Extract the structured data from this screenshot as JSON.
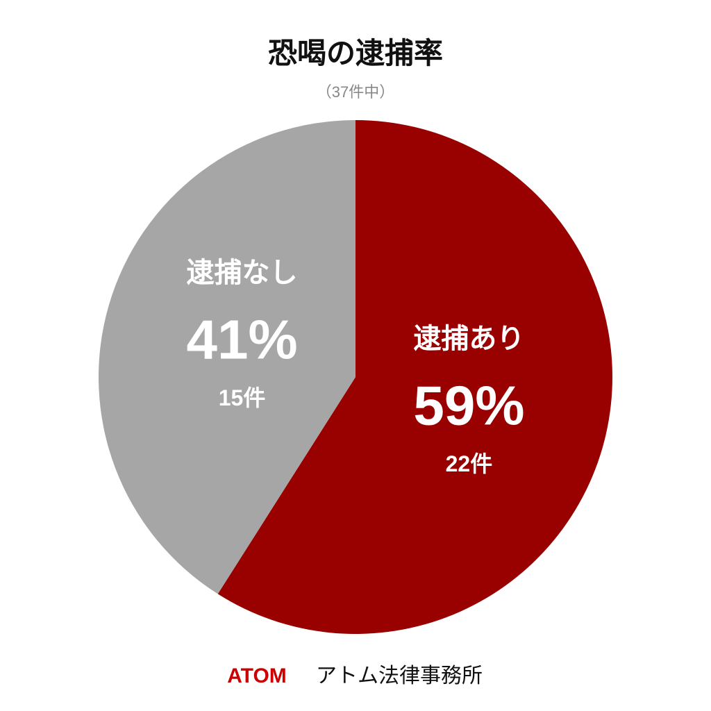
{
  "chart_data": {
    "type": "pie",
    "title": "恐喝の逮捕率",
    "subtitle": "（37件中）",
    "categories": [
      "逮捕あり",
      "逮捕なし"
    ],
    "values": [
      59,
      41
    ],
    "value_labels": [
      "59%",
      "41%"
    ],
    "count_labels": [
      "22件",
      "15件"
    ],
    "colors": [
      "#990000",
      "#a6a6a6"
    ],
    "start_angle": "top",
    "direction": "clockwise",
    "footer": {
      "brand": "ATOM",
      "name": "アトム法律事務所"
    }
  }
}
